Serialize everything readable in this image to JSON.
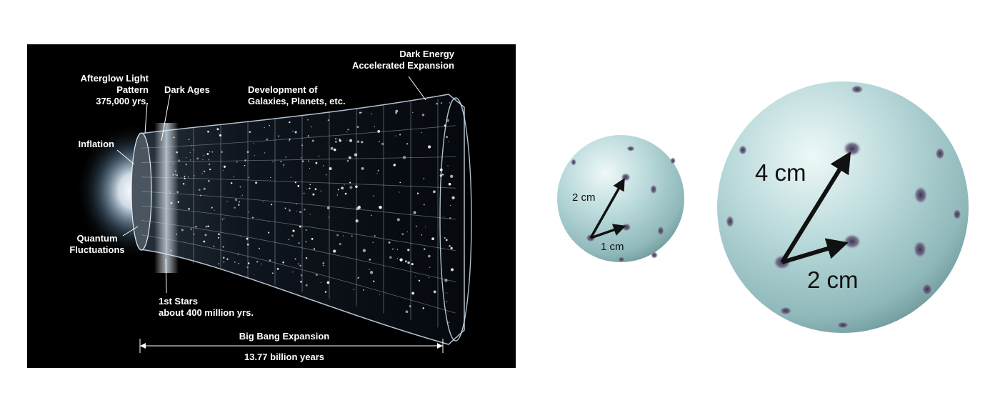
{
  "timeline": {
    "afterglow": "Afterglow Light\nPattern\n375,000 yrs.",
    "dark_ages": "Dark Ages",
    "development": "Development of\nGalaxies, Planets, etc.",
    "dark_energy": "Dark Energy\nAccelerated Expansion",
    "inflation": "Inflation",
    "quantum": "Quantum\nFluctuations",
    "first_stars": "1st Stars\nabout 400 million yrs.",
    "big_bang": "Big Bang Expansion",
    "duration": "13.77 billion years"
  },
  "small_sphere": {
    "label_long": "2 cm",
    "label_short": "1 cm"
  },
  "large_sphere": {
    "label_long": "4 cm",
    "label_short": "2 cm"
  }
}
